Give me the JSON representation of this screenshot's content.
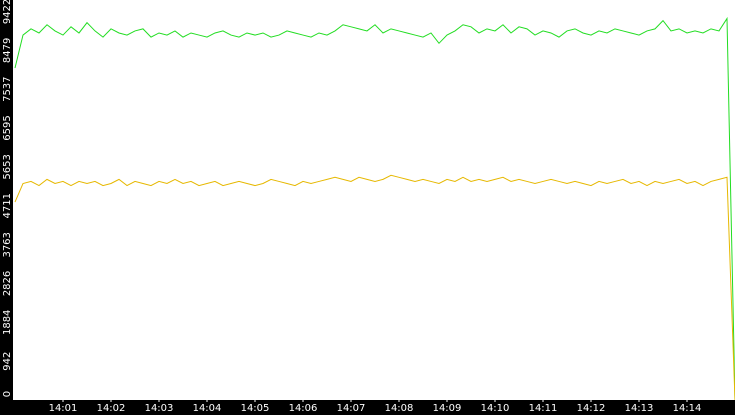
{
  "chart_data": {
    "type": "line",
    "xlim": [
      0,
      90
    ],
    "xticks": [
      {
        "value": 6,
        "label": "14:01"
      },
      {
        "value": 12,
        "label": "14:02"
      },
      {
        "value": 18,
        "label": "14:03"
      },
      {
        "value": 24,
        "label": "14:04"
      },
      {
        "value": 30,
        "label": "14:05"
      },
      {
        "value": 36,
        "label": "14:06"
      },
      {
        "value": 42,
        "label": "14:07"
      },
      {
        "value": 48,
        "label": "14:08"
      },
      {
        "value": 54,
        "label": "14:09"
      },
      {
        "value": 60,
        "label": "14:10"
      },
      {
        "value": 66,
        "label": "14:11"
      },
      {
        "value": 72,
        "label": "14:12"
      },
      {
        "value": 78,
        "label": "14:13"
      },
      {
        "value": 84,
        "label": "14:14"
      }
    ],
    "ylim": [
      0,
      9700
    ],
    "yticks": [
      0,
      942,
      1884,
      2826,
      3763,
      4711,
      5653,
      6595,
      7537,
      8479,
      9422
    ],
    "grid": false,
    "series": [
      {
        "color": "#22dd22",
        "values": [
          8050,
          8850,
          9000,
          8900,
          9100,
          8950,
          8850,
          9050,
          8900,
          9150,
          8950,
          8800,
          9000,
          8900,
          8850,
          8950,
          9000,
          8800,
          8900,
          8850,
          8950,
          8800,
          8900,
          8850,
          8800,
          8900,
          8950,
          8850,
          8800,
          8900,
          8850,
          8900,
          8800,
          8850,
          8950,
          8900,
          8850,
          8800,
          8900,
          8850,
          8950,
          9100,
          9050,
          9000,
          8950,
          9100,
          8900,
          9000,
          8950,
          8900,
          8850,
          8800,
          8900,
          8650,
          8850,
          8950,
          9100,
          9050,
          8900,
          9000,
          8950,
          9100,
          8900,
          9050,
          9000,
          8850,
          8950,
          8900,
          8800,
          8950,
          9000,
          8900,
          8850,
          8950,
          8900,
          9000,
          8950,
          8900,
          8850,
          8950,
          9000,
          9200,
          8950,
          9000,
          8900,
          8950,
          8900,
          9000,
          8950,
          9250,
          0
        ]
      },
      {
        "color": "#e6b800",
        "values": [
          4800,
          5250,
          5300,
          5200,
          5350,
          5250,
          5300,
          5200,
          5300,
          5250,
          5300,
          5200,
          5250,
          5350,
          5200,
          5300,
          5250,
          5200,
          5300,
          5250,
          5350,
          5250,
          5300,
          5200,
          5250,
          5300,
          5200,
          5250,
          5300,
          5250,
          5200,
          5250,
          5350,
          5300,
          5250,
          5200,
          5300,
          5250,
          5300,
          5350,
          5400,
          5350,
          5300,
          5400,
          5350,
          5300,
          5350,
          5450,
          5400,
          5350,
          5300,
          5350,
          5300,
          5250,
          5350,
          5300,
          5400,
          5300,
          5350,
          5300,
          5350,
          5400,
          5300,
          5350,
          5300,
          5250,
          5300,
          5350,
          5300,
          5250,
          5300,
          5250,
          5200,
          5300,
          5250,
          5300,
          5350,
          5250,
          5300,
          5200,
          5300,
          5250,
          5300,
          5350,
          5250,
          5300,
          5200,
          5300,
          5350,
          5400,
          0
        ]
      }
    ]
  }
}
